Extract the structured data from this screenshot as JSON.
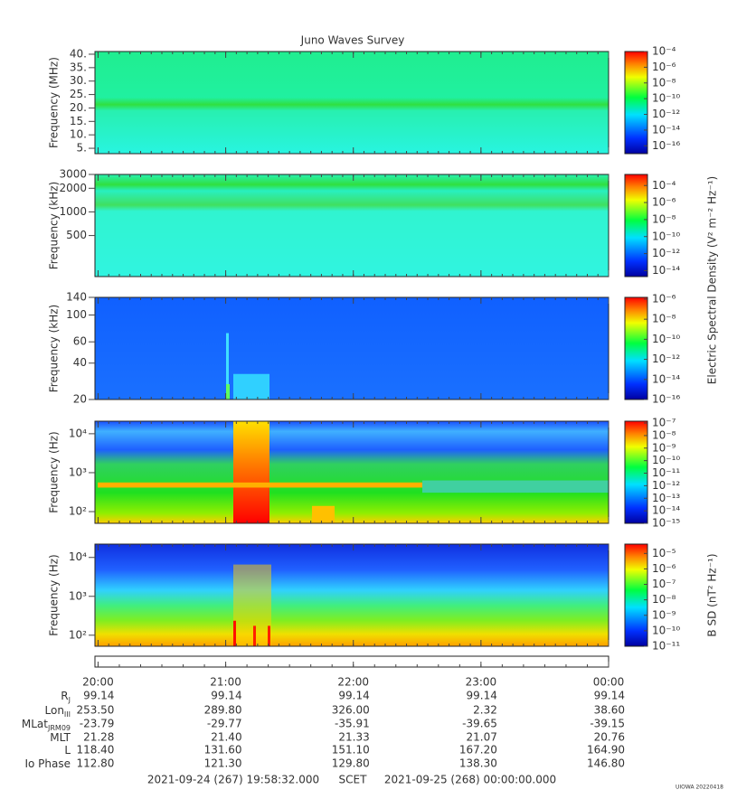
{
  "title": "Juno Waves Survey",
  "chart_data": [
    {
      "type": "heatmap",
      "ylabel": "Frequency (MHz)",
      "ylog": false,
      "ylim": [
        3,
        41
      ],
      "yticks": [
        {
          "value": 5,
          "label": "5."
        },
        {
          "value": 10,
          "label": "10."
        },
        {
          "value": 15,
          "label": "15."
        },
        {
          "value": 20,
          "label": "20."
        },
        {
          "value": 25,
          "label": "25."
        },
        {
          "value": 30,
          "label": "30."
        },
        {
          "value": 35,
          "label": "35."
        },
        {
          "value": 40,
          "label": "40."
        }
      ],
      "clog": true,
      "clim": [
        1e-17,
        0.0001
      ],
      "cticks": [
        {
          "value": 0.0001,
          "label": "10⁻⁴"
        },
        {
          "value": 1e-06,
          "label": "10⁻⁶"
        },
        {
          "value": 1e-08,
          "label": "10⁻⁸"
        },
        {
          "value": 1e-10,
          "label": "10⁻¹⁰"
        },
        {
          "value": 1e-12,
          "label": "10⁻¹²"
        },
        {
          "value": 1e-14,
          "label": "10⁻¹⁴"
        },
        {
          "value": 1e-16,
          "label": "10⁻¹⁶"
        }
      ]
    },
    {
      "type": "heatmap",
      "ylabel": "Frequency (kHz)",
      "ylog": true,
      "ylim": [
        150,
        3000
      ],
      "yticks": [
        500,
        1000,
        2000,
        3000
      ],
      "clog": true,
      "clim": [
        2e-15,
        0.002
      ],
      "cticks": [
        {
          "value": 0.0001,
          "label": "10⁻⁴"
        },
        {
          "value": 1e-06,
          "label": "10⁻⁶"
        },
        {
          "value": 1e-08,
          "label": "10⁻⁸"
        },
        {
          "value": 1e-10,
          "label": "10⁻¹⁰"
        },
        {
          "value": 1e-12,
          "label": "10⁻¹²"
        },
        {
          "value": 1e-14,
          "label": "10⁻¹⁴"
        }
      ],
      "zlabel": "Electric Spectral Density (V² m⁻² Hz⁻¹)"
    },
    {
      "type": "heatmap",
      "ylabel": "Frequency (kHz)",
      "ylog": true,
      "ylim": [
        20,
        140
      ],
      "yticks": [
        20,
        40,
        60,
        100,
        140
      ],
      "clog": true,
      "clim": [
        1e-16,
        1.5e-06
      ],
      "cticks": [
        {
          "value": 1e-06,
          "label": "10⁻⁶"
        },
        {
          "value": 1e-08,
          "label": "10⁻⁸"
        },
        {
          "value": 1e-10,
          "label": "10⁻¹⁰"
        },
        {
          "value": 1e-12,
          "label": "10⁻¹²"
        },
        {
          "value": 1e-14,
          "label": "10⁻¹⁴"
        },
        {
          "value": 1e-16,
          "label": "10⁻¹⁶"
        }
      ]
    },
    {
      "type": "heatmap",
      "ylabel": "Frequency (Hz)",
      "ylog": true,
      "ylim": [
        50,
        21000
      ],
      "yticks": [
        {
          "value": 100,
          "label": "10²"
        },
        {
          "value": 1000,
          "label": "10³"
        },
        {
          "value": 10000,
          "label": "10⁴"
        }
      ],
      "clog": true,
      "clim": [
        1e-15,
        1.4e-07
      ],
      "cticks": [
        {
          "value": 1e-07,
          "label": "10⁻⁷"
        },
        {
          "value": 1e-08,
          "label": "10⁻⁸"
        },
        {
          "value": 1e-09,
          "label": "10⁻⁹"
        },
        {
          "value": 1e-10,
          "label": "10⁻¹⁰"
        },
        {
          "value": 1e-11,
          "label": "10⁻¹¹"
        },
        {
          "value": 1e-12,
          "label": "10⁻¹²"
        },
        {
          "value": 1e-13,
          "label": "10⁻¹³"
        },
        {
          "value": 1e-14,
          "label": "10⁻¹⁴"
        },
        {
          "value": 1e-15,
          "label": "10⁻¹⁵"
        }
      ]
    },
    {
      "type": "heatmap",
      "ylabel": "Frequency (Hz)",
      "ylog": true,
      "ylim": [
        52,
        22000
      ],
      "yticks": [
        {
          "value": 100,
          "label": "10²"
        },
        {
          "value": 1000,
          "label": "10³"
        },
        {
          "value": 10000,
          "label": "10⁴"
        }
      ],
      "clog": true,
      "clim": [
        1e-11,
        4e-05
      ],
      "cticks": [
        {
          "value": 1e-05,
          "label": "10⁻⁵"
        },
        {
          "value": 1e-06,
          "label": "10⁻⁶"
        },
        {
          "value": 1e-07,
          "label": "10⁻⁷"
        },
        {
          "value": 1e-08,
          "label": "10⁻⁸"
        },
        {
          "value": 1e-09,
          "label": "10⁻⁹"
        },
        {
          "value": 1e-10,
          "label": "10⁻¹⁰"
        },
        {
          "value": 1e-11,
          "label": "10⁻¹¹"
        }
      ],
      "zlabel": "B SD (nT² Hz⁻¹)"
    }
  ],
  "time_axis": {
    "xlim": [
      19.9756,
      24.0
    ],
    "xticks": [
      {
        "value": 20,
        "label": "20:00"
      },
      {
        "value": 21,
        "label": "21:00"
      },
      {
        "value": 22,
        "label": "22:00"
      },
      {
        "value": 23,
        "label": "23:00"
      },
      {
        "value": 24,
        "label": "00:00"
      }
    ]
  },
  "ephemeris": {
    "rows": [
      {
        "label": "R",
        "sub": "J",
        "values": [
          "99.14",
          "99.14",
          "99.14",
          "99.14",
          "99.14"
        ]
      },
      {
        "label": "Lon",
        "sub": "III",
        "values": [
          "253.50",
          "289.80",
          "326.00",
          "2.32",
          "38.60"
        ]
      },
      {
        "label": "MLat",
        "sub": "JRM09",
        "values": [
          "-23.79",
          "-29.77",
          "-35.91",
          "-39.65",
          "-39.15"
        ]
      },
      {
        "label": "MLT",
        "values": [
          "21.28",
          "21.40",
          "21.33",
          "21.07",
          "20.76"
        ]
      },
      {
        "label": "L",
        "values": [
          "118.40",
          "131.60",
          "151.10",
          "167.20",
          "164.90"
        ]
      },
      {
        "label": "Io Phase",
        "values": [
          "112.80",
          "121.30",
          "129.80",
          "138.30",
          "146.80"
        ]
      }
    ]
  },
  "footer": {
    "start": "2021-09-24 (267) 19:58:32.000",
    "scet": "SCET",
    "end": "2021-09-25 (268) 00:00:00.000"
  },
  "credit": "UIOWA 20220418"
}
